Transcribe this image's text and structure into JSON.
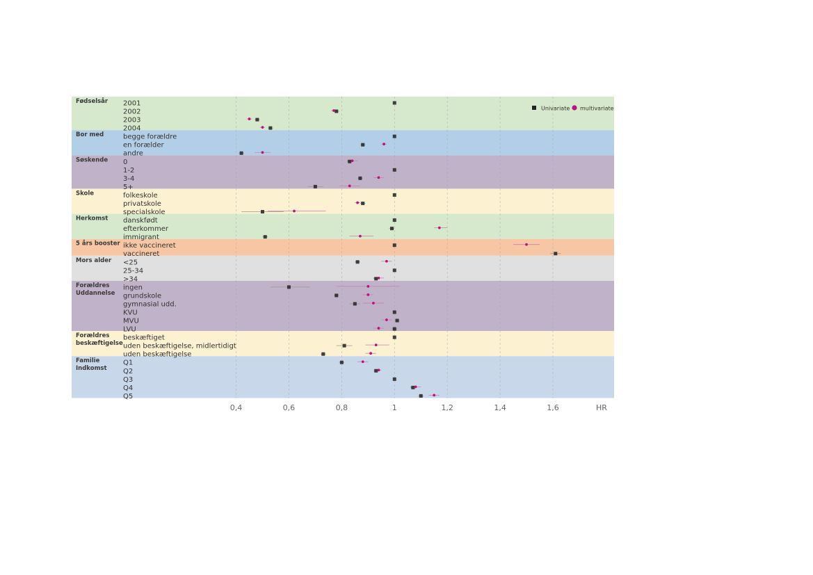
{
  "chart_data": {
    "type": "forest",
    "xlabel": "HR",
    "xlim": [
      0.4,
      1.8
    ],
    "x_ticks": [
      {
        "value": 0.4,
        "label": "0,4"
      },
      {
        "value": 0.6,
        "label": "0,6"
      },
      {
        "value": 0.8,
        "label": "0,8"
      },
      {
        "value": 1.0,
        "label": "1"
      },
      {
        "value": 1.2,
        "label": "1,2"
      },
      {
        "value": 1.4,
        "label": "1,4"
      },
      {
        "value": 1.6,
        "label": "1,6"
      }
    ],
    "reference_line": 1,
    "grid": "vertical dashed",
    "legend": {
      "position": "top-right",
      "series": [
        {
          "name": "Univariate",
          "color": "#222222",
          "marker": "square"
        },
        {
          "name": "multivariate",
          "color": "#b5177e",
          "marker": "circle"
        }
      ]
    },
    "groups": [
      {
        "name": "Fødselsår",
        "color": "#d6e9cd",
        "rows": [
          {
            "label": "2001",
            "uni": 1.0
          },
          {
            "label": "2002",
            "uni": 0.78,
            "uni_ci": [
              0.77,
              0.79
            ],
            "multi": 0.77,
            "multi_ci": [
              0.76,
              0.78
            ]
          },
          {
            "label": "2003",
            "uni": 0.48,
            "uni_ci": [
              0.47,
              0.49
            ],
            "multi": 0.45,
            "multi_ci": [
              0.44,
              0.46
            ]
          },
          {
            "label": "2004",
            "uni": 0.53,
            "uni_ci": [
              0.52,
              0.54
            ],
            "multi": 0.5,
            "multi_ci": [
              0.49,
              0.51
            ]
          }
        ]
      },
      {
        "name": "Bor med",
        "color": "#b3cfe8",
        "rows": [
          {
            "label": "begge forældre",
            "uni": 1.0
          },
          {
            "label": "en forælder",
            "uni": 0.88,
            "uni_ci": [
              0.87,
              0.89
            ],
            "multi": 0.96,
            "multi_ci": [
              0.95,
              0.97
            ]
          },
          {
            "label": "andre",
            "uni": 0.42,
            "uni_ci": [
              0.41,
              0.43
            ],
            "multi": 0.5,
            "multi_ci": [
              0.47,
              0.53
            ]
          }
        ]
      },
      {
        "name": "Søskende",
        "color": "#c0b2c8",
        "rows": [
          {
            "label": "0",
            "uni": 0.83,
            "uni_ci": [
              0.82,
              0.84
            ],
            "multi": 0.84,
            "multi_ci": [
              0.82,
              0.86
            ]
          },
          {
            "label": "1-2",
            "uni": 1.0
          },
          {
            "label": "3-4",
            "uni": 0.87,
            "uni_ci": [
              0.86,
              0.88
            ],
            "multi": 0.94,
            "multi_ci": [
              0.92,
              0.96
            ]
          },
          {
            "label": "5+",
            "uni": 0.7,
            "uni_ci": [
              0.67,
              0.73
            ],
            "multi": 0.83,
            "multi_ci": [
              0.79,
              0.87
            ]
          }
        ]
      },
      {
        "name": "Skole",
        "color": "#fcf1d0",
        "rows": [
          {
            "label": "folkeskole",
            "uni": 1.0
          },
          {
            "label": "privatskole",
            "uni": 0.88,
            "uni_ci": [
              0.87,
              0.89
            ],
            "multi": 0.86,
            "multi_ci": [
              0.85,
              0.87
            ]
          },
          {
            "label": "specialskole",
            "uni": 0.5,
            "uni_ci": [
              0.42,
              0.58
            ],
            "multi": 0.62,
            "multi_ci": [
              0.52,
              0.74
            ]
          }
        ]
      },
      {
        "name": "Herkomst",
        "color": "#d6e9cd",
        "rows": [
          {
            "label": "danskfødt",
            "uni": 1.0
          },
          {
            "label": "efterkommer",
            "uni": 0.99,
            "uni_ci": [
              0.98,
              1.0
            ],
            "multi": 1.17,
            "multi_ci": [
              1.15,
              1.2
            ]
          },
          {
            "label": "immigrant",
            "uni": 0.51,
            "uni_ci": [
              0.5,
              0.52
            ],
            "multi": 0.87,
            "multi_ci": [
              0.83,
              0.92
            ]
          }
        ]
      },
      {
        "name": "5 års booster",
        "color": "#f6c6a5",
        "rows": [
          {
            "label": "ikke vaccineret",
            "uni": 1.0,
            "multi": 1.5,
            "multi_ci": [
              1.45,
              1.55
            ]
          },
          {
            "label": "vaccineret",
            "uni": 1.61,
            "uni_ci": [
              1.59,
              1.63
            ]
          }
        ]
      },
      {
        "name": "Mors alder",
        "color": "#e0e0e0",
        "rows": [
          {
            "label": "<25",
            "uni": 0.86,
            "uni_ci": [
              0.85,
              0.87
            ],
            "multi": 0.97,
            "multi_ci": [
              0.95,
              0.99
            ]
          },
          {
            "label": "25-34",
            "uni": 1.0
          },
          {
            "label": ">34",
            "uni": 0.93,
            "uni_ci": [
              0.92,
              0.94
            ],
            "multi": 0.94,
            "multi_ci": [
              0.92,
              0.96
            ]
          }
        ]
      },
      {
        "name": "Forældres\nUddannelse",
        "color": "#c0b2c8",
        "rows": [
          {
            "label": "ingen",
            "uni": 0.6,
            "uni_ci": [
              0.53,
              0.68
            ],
            "multi": 0.9,
            "multi_ci": [
              0.78,
              1.02
            ]
          },
          {
            "label": "grundskole",
            "uni": 0.78,
            "uni_ci": [
              0.77,
              0.79
            ],
            "multi": 0.9,
            "multi_ci": [
              0.88,
              0.92
            ]
          },
          {
            "label": "gymnasial udd.",
            "uni": 0.85,
            "uni_ci": [
              0.83,
              0.87
            ],
            "multi": 0.92,
            "multi_ci": [
              0.88,
              0.96
            ]
          },
          {
            "label": "KVU",
            "uni": 1.0
          },
          {
            "label": "MVU",
            "uni": 1.01,
            "uni_ci": [
              1.0,
              1.02
            ],
            "multi": 0.97,
            "multi_ci": [
              0.95,
              0.99
            ]
          },
          {
            "label": "LVU",
            "uni": 1.0,
            "uni_ci": [
              0.99,
              1.01
            ],
            "multi": 0.94,
            "multi_ci": [
              0.92,
              0.96
            ]
          }
        ]
      },
      {
        "name": "Forældres\nbeskæftigelse",
        "color": "#fcf1d0",
        "rows": [
          {
            "label": "beskæftiget",
            "uni": 1.0
          },
          {
            "label": "uden beskæftigelse, midlertidigt",
            "uni": 0.81,
            "uni_ci": [
              0.78,
              0.84
            ],
            "multi": 0.93,
            "multi_ci": [
              0.89,
              0.98
            ]
          },
          {
            "label": "uden beskæftigelse",
            "uni": 0.73,
            "uni_ci": [
              0.72,
              0.74
            ],
            "multi": 0.91,
            "multi_ci": [
              0.89,
              0.93
            ]
          }
        ]
      },
      {
        "name": "Familie\nIndkomst",
        "color": "#c8d8ea",
        "rows": [
          {
            "label": "Q1",
            "uni": 0.8,
            "uni_ci": [
              0.79,
              0.81
            ],
            "multi": 0.88,
            "multi_ci": [
              0.86,
              0.9
            ]
          },
          {
            "label": "Q2",
            "uni": 0.93,
            "uni_ci": [
              0.92,
              0.94
            ],
            "multi": 0.94,
            "multi_ci": [
              0.93,
              0.95
            ]
          },
          {
            "label": "Q3",
            "uni": 1.0
          },
          {
            "label": "Q4",
            "uni": 1.07,
            "uni_ci": [
              1.06,
              1.08
            ],
            "multi": 1.08,
            "multi_ci": [
              1.06,
              1.1
            ]
          },
          {
            "label": "Q5",
            "uni": 1.1,
            "uni_ci": [
              1.09,
              1.11
            ],
            "multi": 1.15,
            "multi_ci": [
              1.13,
              1.17
            ]
          }
        ]
      }
    ]
  }
}
